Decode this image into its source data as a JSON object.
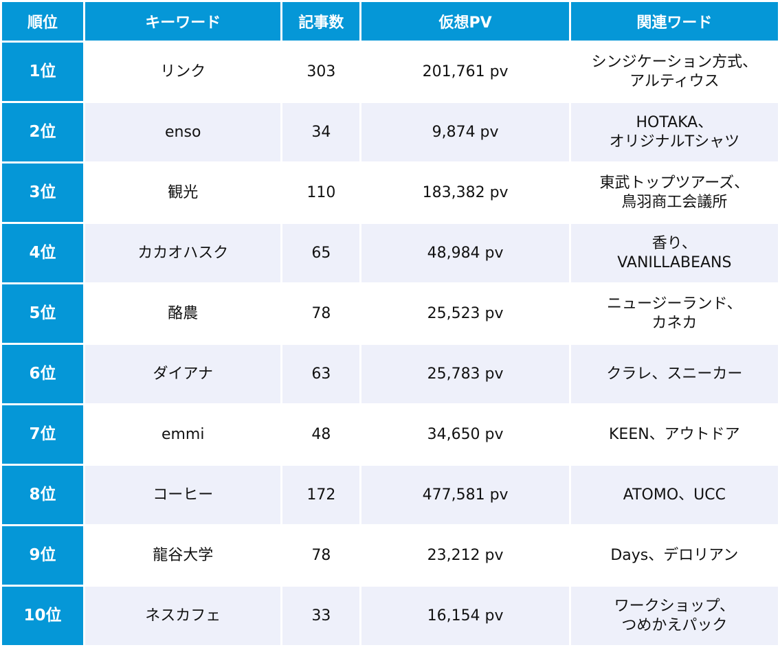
{
  "table": {
    "headers": {
      "rank": "順位",
      "keyword": "キーワード",
      "articles": "記事数",
      "pv": "仮想PV",
      "related": "関連ワード"
    },
    "rows": [
      {
        "rank": "1位",
        "keyword": "リンク",
        "articles": "303",
        "pv": "201,761 pv",
        "related": [
          "シンジケーション方式、",
          "アルティウス"
        ]
      },
      {
        "rank": "2位",
        "keyword": "enso",
        "articles": "34",
        "pv": "9,874 pv",
        "related": [
          "HOTAKA、",
          "オリジナルTシャツ"
        ]
      },
      {
        "rank": "3位",
        "keyword": "観光",
        "articles": "110",
        "pv": "183,382 pv",
        "related": [
          "東武トップツアーズ、",
          "鳥羽商工会議所"
        ]
      },
      {
        "rank": "4位",
        "keyword": "カカオハスク",
        "articles": "65",
        "pv": "48,984 pv",
        "related": [
          "香り、",
          "VANILLABEANS"
        ]
      },
      {
        "rank": "5位",
        "keyword": "酪農",
        "articles": "78",
        "pv": "25,523 pv",
        "related": [
          "ニュージーランド、",
          "カネカ"
        ]
      },
      {
        "rank": "6位",
        "keyword": "ダイアナ",
        "articles": "63",
        "pv": "25,783 pv",
        "related": [
          "クラレ、スニーカー",
          ""
        ]
      },
      {
        "rank": "7位",
        "keyword": "emmi",
        "articles": "48",
        "pv": "34,650 pv",
        "related": [
          "KEEN、アウトドア",
          ""
        ]
      },
      {
        "rank": "8位",
        "keyword": "コーヒー",
        "articles": "172",
        "pv": "477,581 pv",
        "related": [
          "ATOMO、UCC",
          ""
        ]
      },
      {
        "rank": "9位",
        "keyword": "龍谷大学",
        "articles": "78",
        "pv": "23,212 pv",
        "related": [
          "Days、デロリアン",
          ""
        ]
      },
      {
        "rank": "10位",
        "keyword": "ネスカフェ",
        "articles": "33",
        "pv": "16,154 pv",
        "related": [
          "ワークショップ、",
          "つめかえパック"
        ]
      }
    ]
  },
  "colors": {
    "accent_blue": "#0597d7",
    "stripe": "#eef0fa",
    "text": "#111111"
  }
}
